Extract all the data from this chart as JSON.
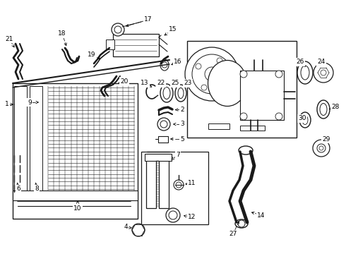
{
  "figsize": [
    4.9,
    3.6
  ],
  "dpi": 100,
  "bg_color": "#ffffff",
  "line_color": "#1a1a1a"
}
